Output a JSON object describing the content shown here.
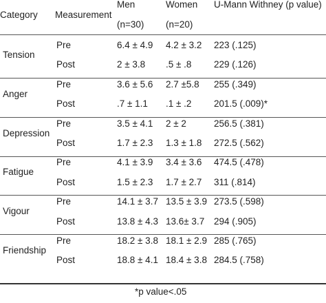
{
  "header": {
    "category": "Category",
    "measurement": "Measurement",
    "men": "Men",
    "men_n": "(n=30)",
    "women": "Women",
    "women_n": "(n=20)",
    "umann": "U-Mann Withney (p value)"
  },
  "groups": [
    {
      "category": "Tension",
      "rows": [
        {
          "measurement": "Pre",
          "men": "6.4 ± 4.9",
          "women": "4.2 ± 3.2",
          "p": "223 (.125)"
        },
        {
          "measurement": "Post",
          "men": "2 ± 3.8",
          "women": ".5 ± .8",
          "p": "229 (.126)"
        }
      ]
    },
    {
      "category": "Anger",
      "rows": [
        {
          "measurement": "Pre",
          "men": "3.6 ± 5.6",
          "women": "2.7 ±5.8",
          "p": "255 (.349)"
        },
        {
          "measurement": "Post",
          "men": ".7 ± 1.1",
          "women": ".1 ± .2",
          "p": "201.5 (.009)*"
        }
      ]
    },
    {
      "category": "Depression",
      "rows": [
        {
          "measurement": "Pre",
          "men": "3.5 ± 4.1",
          "women": "2 ± 2",
          "p": "256.5 (.381)"
        },
        {
          "measurement": "Post",
          "men": "1.7 ± 2.3",
          "women": "1.3 ± 1.8",
          "p": "272.5 (.562)"
        }
      ]
    },
    {
      "category": "Fatigue",
      "rows": [
        {
          "measurement": "Pre",
          "men": "4.1 ± 3.9",
          "women": "3.4 ± 3.6",
          "p": "474.5 (.478)"
        },
        {
          "measurement": "Post",
          "men": "1.5 ± 2.3",
          "women": "1.7 ± 2.7",
          "p": "311 (.814)"
        }
      ]
    },
    {
      "category": "Vigour",
      "rows": [
        {
          "measurement": "Pre",
          "men": "14.1 ± 3.7",
          "women": "13.5 ± 3.9",
          "p": "273.5 (.598)"
        },
        {
          "measurement": "Post",
          "men": "13.8 ± 4.3",
          "women": "13.6± 3.7",
          "p": "294 (.905)"
        }
      ]
    },
    {
      "category": "Friendship",
      "rows": [
        {
          "measurement": "Pre",
          "men": "18.2 ± 3.8",
          "women": "18.1 ± 2.9",
          "p": "285 (.765)"
        },
        {
          "measurement": "Post",
          "men": "18.8 ± 4.1",
          "women": "18.4 ± 3.8",
          "p": "284.5 (.758)"
        }
      ]
    }
  ],
  "footnote": "*p value<.05"
}
